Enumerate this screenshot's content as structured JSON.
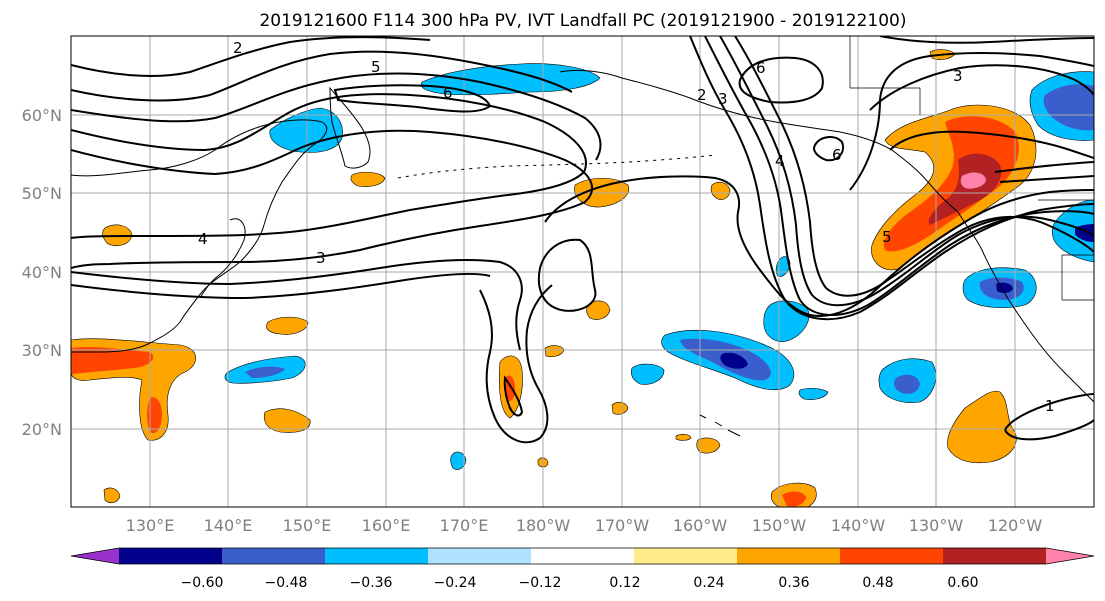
{
  "title": "2019121600 F114 300 hPa PV, IVT Landfall PC (2019121900 - 2019122100)",
  "map": {
    "lon_range": [
      120,
      250
    ],
    "lat_range": [
      10,
      70
    ],
    "lat_labels": [
      "60°N",
      "50°N",
      "40°N",
      "30°N",
      "20°N"
    ],
    "lon_labels": [
      "130°E",
      "140°E",
      "150°E",
      "160°E",
      "170°E",
      "180°W",
      "170°W",
      "160°W",
      "150°W",
      "140°W",
      "130°W",
      "120°W"
    ],
    "grid": true
  },
  "contour_labels": [
    "2",
    "5",
    "6",
    "4",
    "3",
    "2",
    "3",
    "6",
    "4",
    "6",
    "3",
    "5",
    "1"
  ],
  "colorbar": {
    "tick_labels": [
      "−0.60",
      "−0.48",
      "−0.36",
      "−0.24",
      "−0.12",
      "0.12",
      "0.24",
      "0.36",
      "0.48",
      "0.60"
    ],
    "colors": [
      "#9932cc",
      "#00008b",
      "#3a5fcd",
      "#00bfff",
      "#b0e2ff",
      "#ffffff",
      "#ffec8b",
      "#ffa500",
      "#ff4500",
      "#b22222",
      "#ff82ab"
    ]
  },
  "colors": {
    "contour": "#000000",
    "grid": "#aaaaaa",
    "coast": "#000000"
  }
}
